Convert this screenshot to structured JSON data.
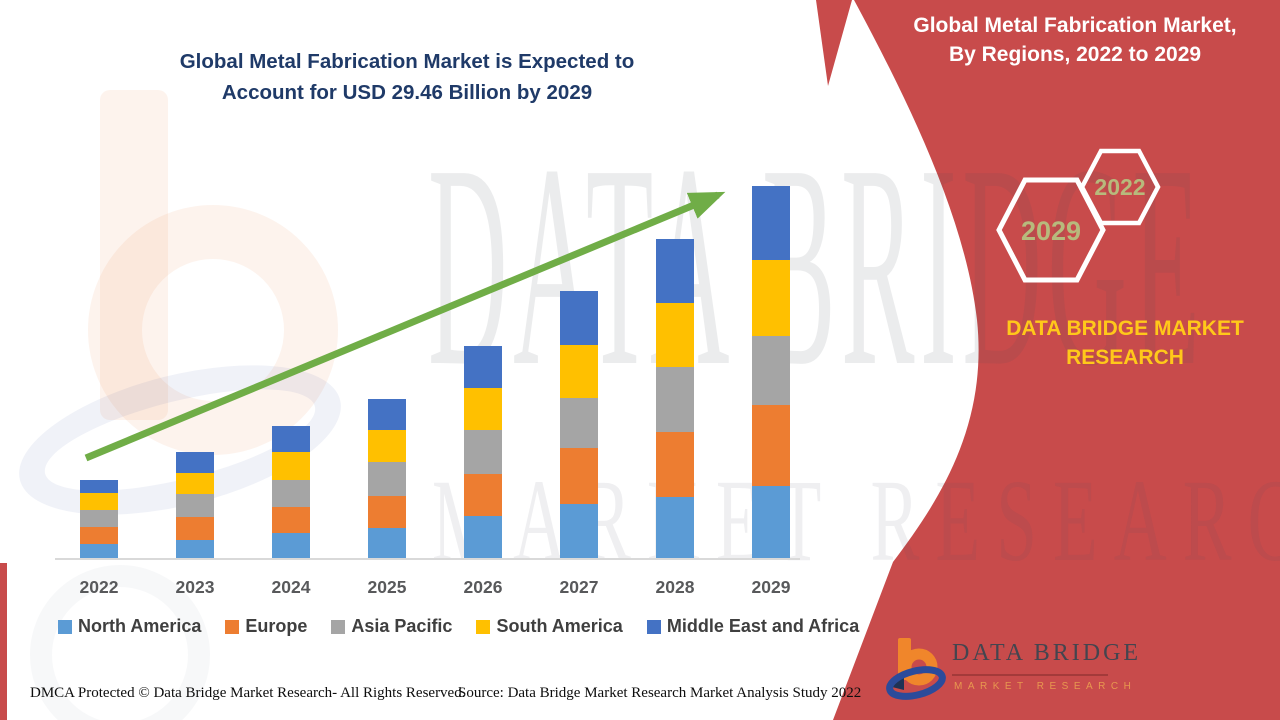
{
  "title": {
    "line1": "Global Metal Fabrication Market is Expected to",
    "line2": "Account for USD 29.46 Billion by 2029"
  },
  "right_panel": {
    "title_line1": "Global Metal Fabrication Market,",
    "title_line2": "By Regions, 2022 to 2029",
    "hexagon_back_label": "2022",
    "hexagon_front_label": "2029",
    "brand_line1": "DATA BRIDGE MARKET",
    "brand_line2": "RESEARCH",
    "background_color": "#C84B4B",
    "brand_text_color": "#FFC81A",
    "hexagon_text_color": "#B7BA7C"
  },
  "watermark": {
    "row1": "DATA BRIDGE",
    "row2": "MARKET RESEARCH"
  },
  "logo": {
    "name": "DATA BRIDGE",
    "tagline": "MARKET RESEARCH"
  },
  "footer": {
    "dmca": "DMCA Protected © Data Bridge Market Research- All Rights Reserved.",
    "source": "Source: Data Bridge Market Research Market Analysis Study 2022"
  },
  "chart_data": {
    "type": "bar",
    "stacked": true,
    "title": "Global Metal Fabrication Market is Expected to Account for USD 29.46 Billion by 2029",
    "unit": "USD Billion",
    "categories": [
      "2022",
      "2023",
      "2024",
      "2025",
      "2026",
      "2027",
      "2028",
      "2029"
    ],
    "series": [
      {
        "name": "North America",
        "color": "#5B9BD5",
        "values": [
          1.18,
          1.5,
          2.05,
          2.42,
          3.37,
          4.34,
          4.87,
          5.79
        ]
      },
      {
        "name": "Europe",
        "color": "#ED7D31",
        "values": [
          1.37,
          1.84,
          2.08,
          2.53,
          3.34,
          4.42,
          5.21,
          6.4
        ]
      },
      {
        "name": "Asia Pacific",
        "color": "#A5A5A5",
        "values": [
          1.32,
          1.79,
          2.13,
          2.69,
          3.48,
          3.95,
          5.13,
          5.45
        ]
      },
      {
        "name": "South America",
        "color": "#FFC000",
        "values": [
          1.39,
          1.66,
          2.24,
          2.55,
          3.32,
          4.19,
          5.06,
          6.0
        ]
      },
      {
        "name": "Middle East and Africa",
        "color": "#4472C4",
        "values": [
          0.98,
          1.71,
          2.05,
          2.5,
          3.37,
          4.27,
          5.0,
          5.82
        ]
      }
    ],
    "totals": [
      6.24,
      8.5,
      10.55,
      12.69,
      16.88,
      21.17,
      25.27,
      29.46
    ],
    "ylim": [
      0,
      32
    ],
    "grid": false,
    "legend_position": "bottom",
    "trend_arrow": {
      "present": true,
      "color": "#70AD47"
    }
  }
}
